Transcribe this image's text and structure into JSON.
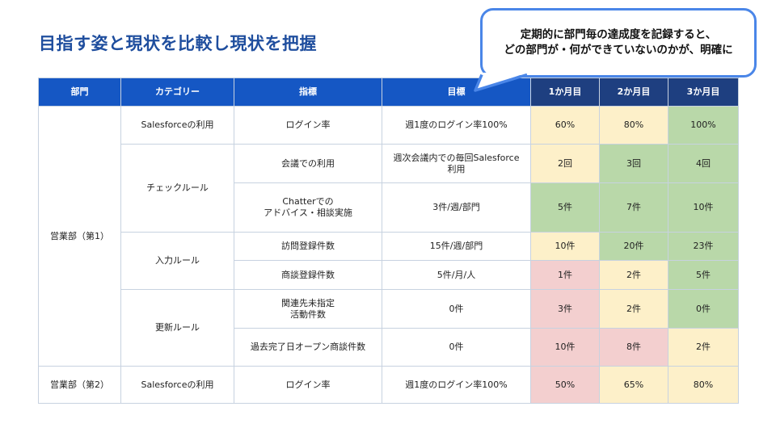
{
  "title": "目指す姿と現状を比較し現状を把握",
  "callout": {
    "line1": "定期的に部門毎の達成度を記録すると、",
    "line2": "どの部門が・何ができていないのかが、明確に"
  },
  "colors": {
    "green": "#b9d8a9",
    "yellow": "#fdf0c9",
    "red": "#f3cfcf",
    "header": "#1557c4",
    "header_month": "#1e3f80"
  },
  "table": {
    "headers": [
      "部門",
      "カテゴリー",
      "指標",
      "目標",
      "1か月目",
      "2か月目",
      "3か月目"
    ],
    "departments": [
      "営業部（第1）",
      "営業部（第2）"
    ],
    "categories": [
      "Salesforceの利用",
      "チェックルール",
      "入力ルール",
      "更新ルール",
      "Salesforceの利用"
    ],
    "rows": [
      {
        "indicator": "ログイン率",
        "target": "週1度のログイン率100%",
        "m1": "60%",
        "m2": "80%",
        "m3": "100%",
        "c1": "yellow",
        "c2": "yellow",
        "c3": "green"
      },
      {
        "indicator": "会議での利用",
        "target_l1": "週次会議内での毎回Salesforce",
        "target_l2": "利用",
        "m1": "2回",
        "m2": "3回",
        "m3": "4回",
        "c1": "yellow",
        "c2": "green",
        "c3": "green"
      },
      {
        "indicator_l1": "Chatterでの",
        "indicator_l2": "アドバイス・相談実施",
        "target": "3件/週/部門",
        "m1": "5件",
        "m2": "7件",
        "m3": "10件",
        "c1": "green",
        "c2": "green",
        "c3": "green"
      },
      {
        "indicator": "訪問登録件数",
        "target": "15件/週/部門",
        "m1": "10件",
        "m2": "20件",
        "m3": "23件",
        "c1": "yellow",
        "c2": "green",
        "c3": "green"
      },
      {
        "indicator": "商談登録件数",
        "target": "5件/月/人",
        "m1": "1件",
        "m2": "2件",
        "m3": "5件",
        "c1": "red",
        "c2": "yellow",
        "c3": "green"
      },
      {
        "indicator_l1": "関連先未指定",
        "indicator_l2": "活動件数",
        "target": "0件",
        "m1": "3件",
        "m2": "2件",
        "m3": "0件",
        "c1": "red",
        "c2": "yellow",
        "c3": "green"
      },
      {
        "indicator": "過去完了日オープン商談件数",
        "target": "0件",
        "m1": "10件",
        "m2": "8件",
        "m3": "2件",
        "c1": "red",
        "c2": "red",
        "c3": "yellow"
      },
      {
        "indicator": "ログイン率",
        "target": "週1度のログイン率100%",
        "m1": "50%",
        "m2": "65%",
        "m3": "80%",
        "c1": "red",
        "c2": "yellow",
        "c3": "yellow"
      }
    ]
  }
}
